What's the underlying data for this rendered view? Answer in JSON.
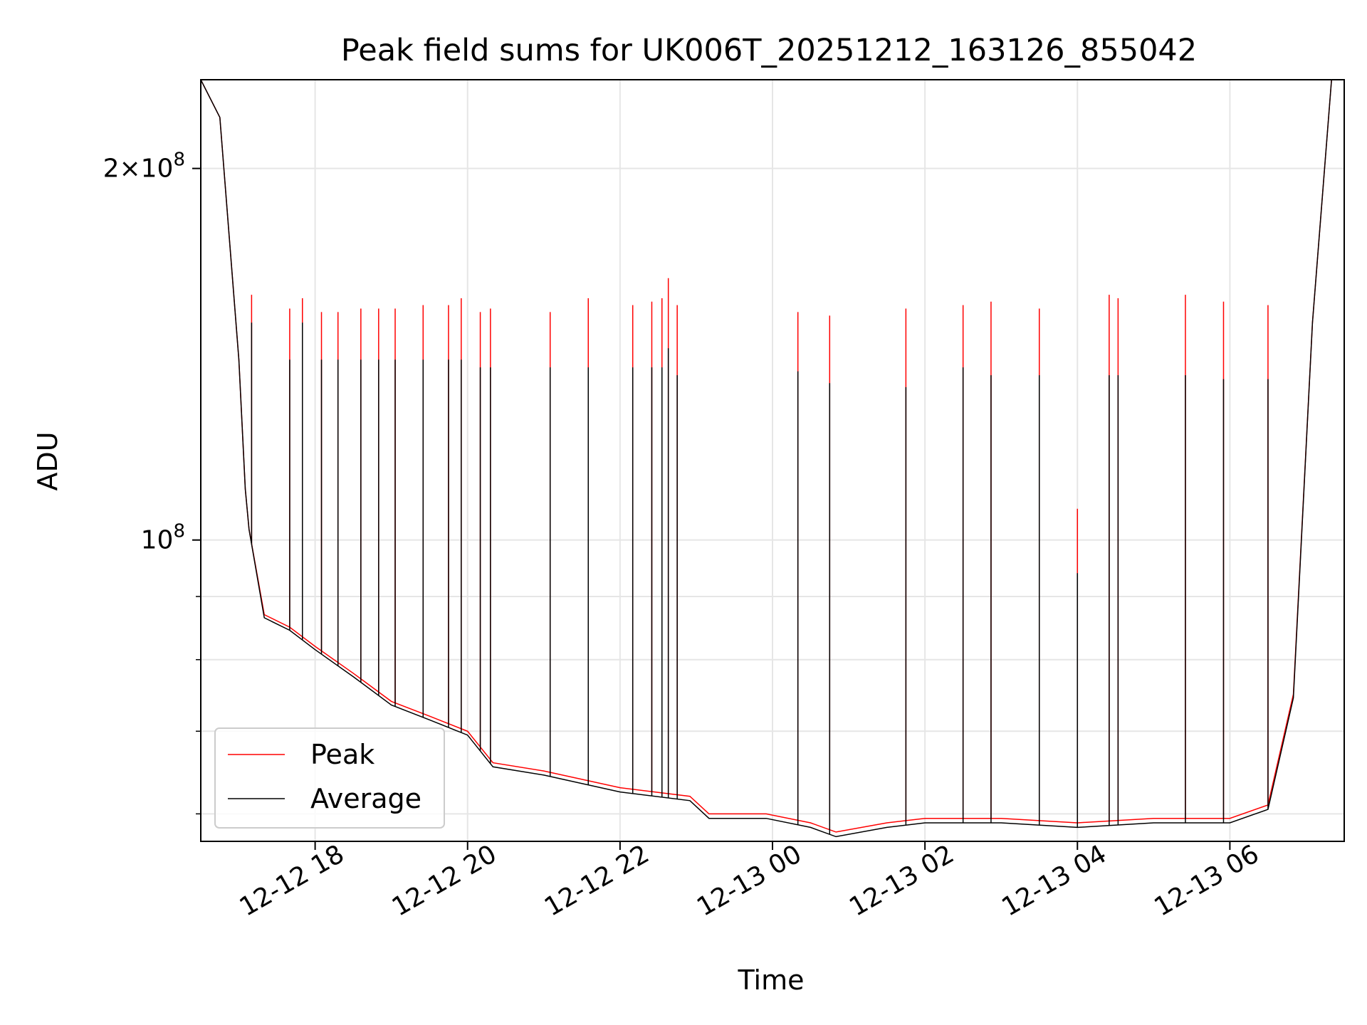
{
  "chart_data": {
    "type": "line",
    "title": "Peak field sums for UK006T_20251212_163126_855042",
    "xlabel": "Time",
    "ylabel": "ADU",
    "y_scale": "log",
    "grid": true,
    "legend_position": "lower-left",
    "xlim": [
      "2025-12-12 16:30",
      "2025-12-13 07:30"
    ],
    "ylim": [
      57000000,
      236000000
    ],
    "x_ticks": [
      "2025-12-12 18:00",
      "2025-12-12 20:00",
      "2025-12-12 22:00",
      "2025-12-13 00:00",
      "2025-12-13 02:00",
      "2025-12-13 04:00",
      "2025-12-13 06:00"
    ],
    "x_tick_labels": [
      "12-12 18",
      "12-12 20",
      "12-12 22",
      "12-13 00",
      "12-13 02",
      "12-13 04",
      "12-13 06"
    ],
    "y_major_ticks": [
      100000000,
      200000000
    ],
    "y_major_tick_labels": [
      "10^8",
      "2×10^8"
    ],
    "y_minor_ticks": [
      60000000,
      70000000,
      80000000,
      90000000
    ],
    "colors": {
      "peak": "#ff0000",
      "average": "#000000"
    },
    "series": [
      {
        "name": "Peak",
        "key": "peak",
        "x": [
          "2025-12-12 16:30",
          "2025-12-12 16:45",
          "2025-12-12 17:00",
          "2025-12-12 17:05",
          "2025-12-12 17:08",
          "2025-12-12 17:20",
          "2025-12-12 17:40",
          "2025-12-12 18:00",
          "2025-12-12 18:30",
          "2025-12-12 19:00",
          "2025-12-12 19:30",
          "2025-12-12 20:00",
          "2025-12-12 20:20",
          "2025-12-12 21:00",
          "2025-12-12 22:00",
          "2025-12-12 22:55",
          "2025-12-12 23:10",
          "2025-12-12 23:55",
          "2025-12-13 00:30",
          "2025-12-13 00:50",
          "2025-12-13 01:30",
          "2025-12-13 02:00",
          "2025-12-13 03:00",
          "2025-12-13 04:00",
          "2025-12-13 05:00",
          "2025-12-13 06:00",
          "2025-12-13 06:30",
          "2025-12-13 06:50",
          "2025-12-13 07:05",
          "2025-12-13 07:20",
          "2025-12-13 07:30"
        ],
        "y": [
          236000000,
          220000000,
          140000000,
          110000000,
          102000000,
          87000000,
          85000000,
          82000000,
          78000000,
          74000000,
          72000000,
          70000000,
          66000000,
          65000000,
          63000000,
          62000000,
          60000000,
          60000000,
          59000000,
          58000000,
          59000000,
          59500000,
          59500000,
          59000000,
          59500000,
          59500000,
          61000000,
          75000000,
          150000000,
          236000000,
          236000000
        ]
      },
      {
        "name": "Average",
        "key": "average",
        "x": [
          "2025-12-12 16:30",
          "2025-12-12 16:45",
          "2025-12-12 17:00",
          "2025-12-12 17:05",
          "2025-12-12 17:08",
          "2025-12-12 17:20",
          "2025-12-12 17:40",
          "2025-12-12 18:00",
          "2025-12-12 18:30",
          "2025-12-12 19:00",
          "2025-12-12 19:30",
          "2025-12-12 20:00",
          "2025-12-12 20:20",
          "2025-12-12 21:00",
          "2025-12-12 22:00",
          "2025-12-12 22:55",
          "2025-12-12 23:10",
          "2025-12-12 23:55",
          "2025-12-13 00:30",
          "2025-12-13 00:50",
          "2025-12-13 01:30",
          "2025-12-13 02:00",
          "2025-12-13 03:00",
          "2025-12-13 04:00",
          "2025-12-13 05:00",
          "2025-12-13 06:00",
          "2025-12-13 06:30",
          "2025-12-13 06:50",
          "2025-12-13 07:05",
          "2025-12-13 07:20",
          "2025-12-13 07:30"
        ],
        "y": [
          236000000,
          220000000,
          140000000,
          110000000,
          102000000,
          86500000,
          84500000,
          81500000,
          77500000,
          73500000,
          71500000,
          69500000,
          65500000,
          64500000,
          62500000,
          61500000,
          59500000,
          59500000,
          58500000,
          57500000,
          58500000,
          59000000,
          59000000,
          58500000,
          59000000,
          59000000,
          60500000,
          74500000,
          150000000,
          236000000,
          236000000
        ]
      }
    ],
    "spikes": {
      "average": [
        {
          "t": "2025-12-12 17:10",
          "y": 150000000
        },
        {
          "t": "2025-12-12 17:40",
          "y": 140000000
        },
        {
          "t": "2025-12-12 17:50",
          "y": 150000000
        },
        {
          "t": "2025-12-12 18:05",
          "y": 140000000
        },
        {
          "t": "2025-12-12 18:18",
          "y": 140000000
        },
        {
          "t": "2025-12-12 18:36",
          "y": 140000000
        },
        {
          "t": "2025-12-12 18:50",
          "y": 140000000
        },
        {
          "t": "2025-12-12 19:03",
          "y": 140000000
        },
        {
          "t": "2025-12-12 19:25",
          "y": 140000000
        },
        {
          "t": "2025-12-12 19:45",
          "y": 140000000
        },
        {
          "t": "2025-12-12 19:55",
          "y": 140000000
        },
        {
          "t": "2025-12-12 20:10",
          "y": 138000000
        },
        {
          "t": "2025-12-12 20:18",
          "y": 138000000
        },
        {
          "t": "2025-12-12 21:05",
          "y": 138000000
        },
        {
          "t": "2025-12-12 21:35",
          "y": 138000000
        },
        {
          "t": "2025-12-12 22:10",
          "y": 138000000
        },
        {
          "t": "2025-12-12 22:25",
          "y": 138000000
        },
        {
          "t": "2025-12-12 22:33",
          "y": 138000000
        },
        {
          "t": "2025-12-12 22:38",
          "y": 143000000
        },
        {
          "t": "2025-12-12 22:45",
          "y": 136000000
        },
        {
          "t": "2025-12-13 00:20",
          "y": 137000000
        },
        {
          "t": "2025-12-13 00:45",
          "y": 134000000
        },
        {
          "t": "2025-12-13 01:45",
          "y": 133000000
        },
        {
          "t": "2025-12-13 02:30",
          "y": 138000000
        },
        {
          "t": "2025-12-13 02:52",
          "y": 136000000
        },
        {
          "t": "2025-12-13 03:30",
          "y": 136000000
        },
        {
          "t": "2025-12-13 04:00",
          "y": 94000000
        },
        {
          "t": "2025-12-13 04:25",
          "y": 136000000
        },
        {
          "t": "2025-12-13 04:32",
          "y": 136000000
        },
        {
          "t": "2025-12-13 05:25",
          "y": 136000000
        },
        {
          "t": "2025-12-13 05:55",
          "y": 135000000
        },
        {
          "t": "2025-12-13 06:30",
          "y": 135000000
        }
      ],
      "peak": [
        {
          "t": "2025-12-12 17:10",
          "y": 158000000
        },
        {
          "t": "2025-12-12 17:40",
          "y": 154000000
        },
        {
          "t": "2025-12-12 17:50",
          "y": 157000000
        },
        {
          "t": "2025-12-12 18:05",
          "y": 153000000
        },
        {
          "t": "2025-12-12 18:18",
          "y": 153000000
        },
        {
          "t": "2025-12-12 18:36",
          "y": 154000000
        },
        {
          "t": "2025-12-12 18:50",
          "y": 154000000
        },
        {
          "t": "2025-12-12 19:03",
          "y": 154000000
        },
        {
          "t": "2025-12-12 19:25",
          "y": 155000000
        },
        {
          "t": "2025-12-12 19:45",
          "y": 155000000
        },
        {
          "t": "2025-12-12 19:55",
          "y": 157000000
        },
        {
          "t": "2025-12-12 20:10",
          "y": 153000000
        },
        {
          "t": "2025-12-12 20:18",
          "y": 154000000
        },
        {
          "t": "2025-12-12 21:05",
          "y": 153000000
        },
        {
          "t": "2025-12-12 21:35",
          "y": 157000000
        },
        {
          "t": "2025-12-12 22:10",
          "y": 155000000
        },
        {
          "t": "2025-12-12 22:25",
          "y": 156000000
        },
        {
          "t": "2025-12-12 22:33",
          "y": 157000000
        },
        {
          "t": "2025-12-12 22:38",
          "y": 163000000
        },
        {
          "t": "2025-12-12 22:45",
          "y": 155000000
        },
        {
          "t": "2025-12-13 00:20",
          "y": 153000000
        },
        {
          "t": "2025-12-13 00:45",
          "y": 152000000
        },
        {
          "t": "2025-12-13 01:45",
          "y": 154000000
        },
        {
          "t": "2025-12-13 02:30",
          "y": 155000000
        },
        {
          "t": "2025-12-13 02:52",
          "y": 156000000
        },
        {
          "t": "2025-12-13 03:30",
          "y": 154000000
        },
        {
          "t": "2025-12-13 04:00",
          "y": 106000000
        },
        {
          "t": "2025-12-13 04:25",
          "y": 158000000
        },
        {
          "t": "2025-12-13 04:32",
          "y": 157000000
        },
        {
          "t": "2025-12-13 05:25",
          "y": 158000000
        },
        {
          "t": "2025-12-13 05:55",
          "y": 156000000
        },
        {
          "t": "2025-12-13 06:30",
          "y": 155000000
        }
      ]
    }
  }
}
